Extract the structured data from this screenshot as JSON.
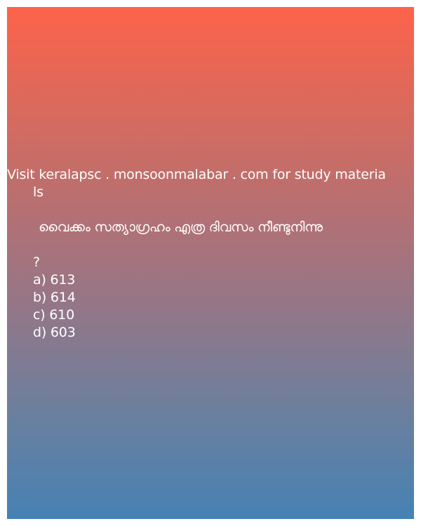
{
  "promo": {
    "line1": "Visit keralapsc . monsoonmalabar . com for study materia",
    "line2": "ls"
  },
  "question": {
    "text": "വൈക്കം സത്യാഗ്രഹം എത്ര ദിവസം നീണ്ടുനിന്നു",
    "mark": "?"
  },
  "options": [
    "a) 613",
    "b) 614",
    "c) 610",
    "d) 603"
  ],
  "colors": {
    "gradient_top": "#fd634a",
    "gradient_bottom": "#4682b4",
    "text": "#ffffff"
  }
}
